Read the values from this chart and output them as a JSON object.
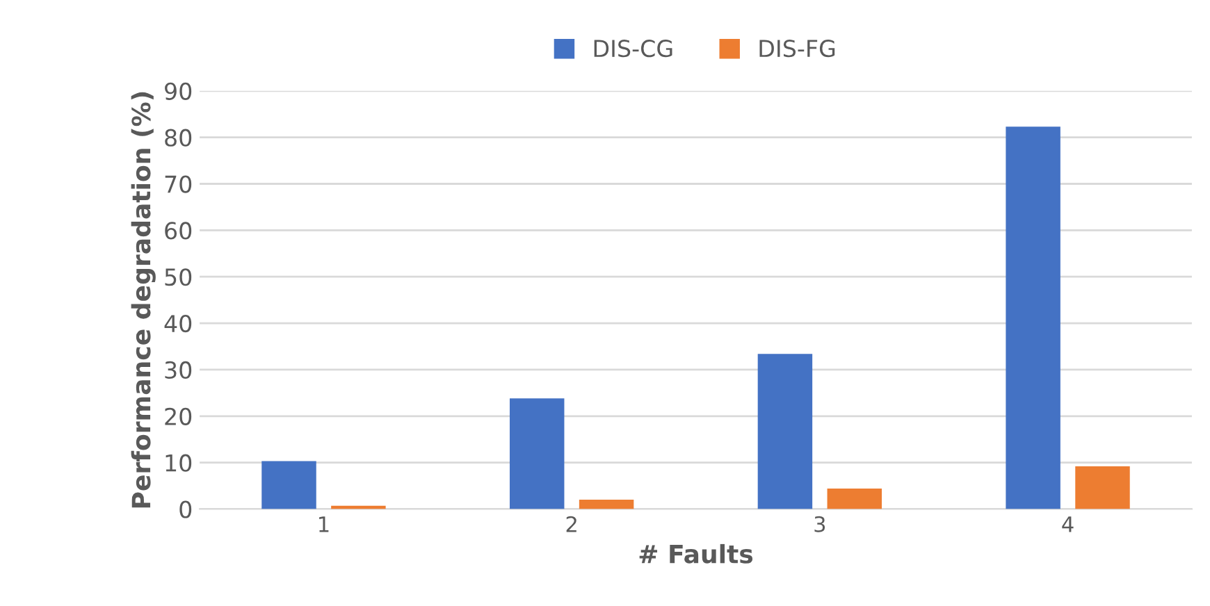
{
  "chart_data": {
    "type": "bar",
    "xlabel": "# Faults",
    "ylabel": "Performance degradation (%)",
    "categories": [
      "1",
      "2",
      "3",
      "4"
    ],
    "series": [
      {
        "name": "DIS-CG",
        "color": "#4472c4",
        "values": [
          10.3,
          23.8,
          33.4,
          82.3
        ]
      },
      {
        "name": "DIS-FG",
        "color": "#ed7d31",
        "values": [
          0.7,
          2.0,
          4.4,
          9.2
        ]
      }
    ],
    "ylim": [
      0,
      90
    ],
    "yticks": [
      0,
      10,
      20,
      30,
      40,
      50,
      60,
      70,
      80,
      90
    ],
    "grid": "y",
    "legend": "top"
  }
}
